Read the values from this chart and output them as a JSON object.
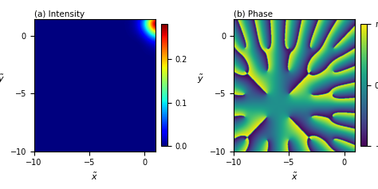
{
  "title_a": "(a) Intensity",
  "title_b": "(b) Phase",
  "xlabel": "$\\tilde{x}$",
  "ylabel": "$\\tilde{y}$",
  "xticks": [
    -10,
    -5,
    0
  ],
  "yticks": [
    -10,
    -5,
    0
  ],
  "cmap_intensity": "jet",
  "cmap_phase": "viridis",
  "vmin_intensity": 0.0,
  "vmax_intensity": 0.28,
  "figsize": [
    4.74,
    2.37
  ],
  "dpi": 100,
  "xlim": [
    -10,
    1
  ],
  "ylim": [
    -10,
    1.5
  ]
}
